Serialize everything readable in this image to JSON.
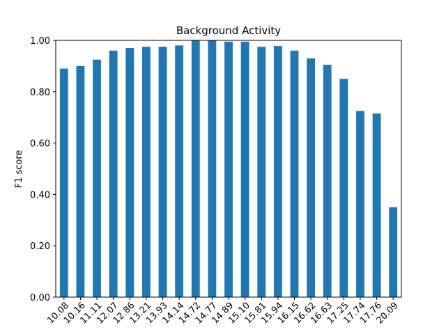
{
  "chart_data": {
    "type": "bar",
    "title": "Background Activity",
    "xlabel": "",
    "ylabel": "F1 score",
    "ylim": [
      0,
      1
    ],
    "yticks": [
      "0.00",
      "0.20",
      "0.40",
      "0.60",
      "0.80",
      "1.00"
    ],
    "grid": false,
    "bar_color": "#1f77b4",
    "categories": [
      "10.08",
      "10.16",
      "11.11",
      "12.07",
      "12.86",
      "13.21",
      "13.93",
      "14.14",
      "14.72",
      "14.77",
      "14.89",
      "15.10",
      "15.81",
      "15.94",
      "16.15",
      "16.62",
      "16.63",
      "17.25",
      "17.74",
      "17.76",
      "20.09"
    ],
    "values": [
      0.89,
      0.9,
      0.925,
      0.96,
      0.97,
      0.975,
      0.975,
      0.98,
      1.0,
      1.0,
      0.995,
      0.995,
      0.975,
      0.978,
      0.96,
      0.93,
      0.905,
      0.85,
      0.725,
      0.715,
      0.35
    ]
  }
}
